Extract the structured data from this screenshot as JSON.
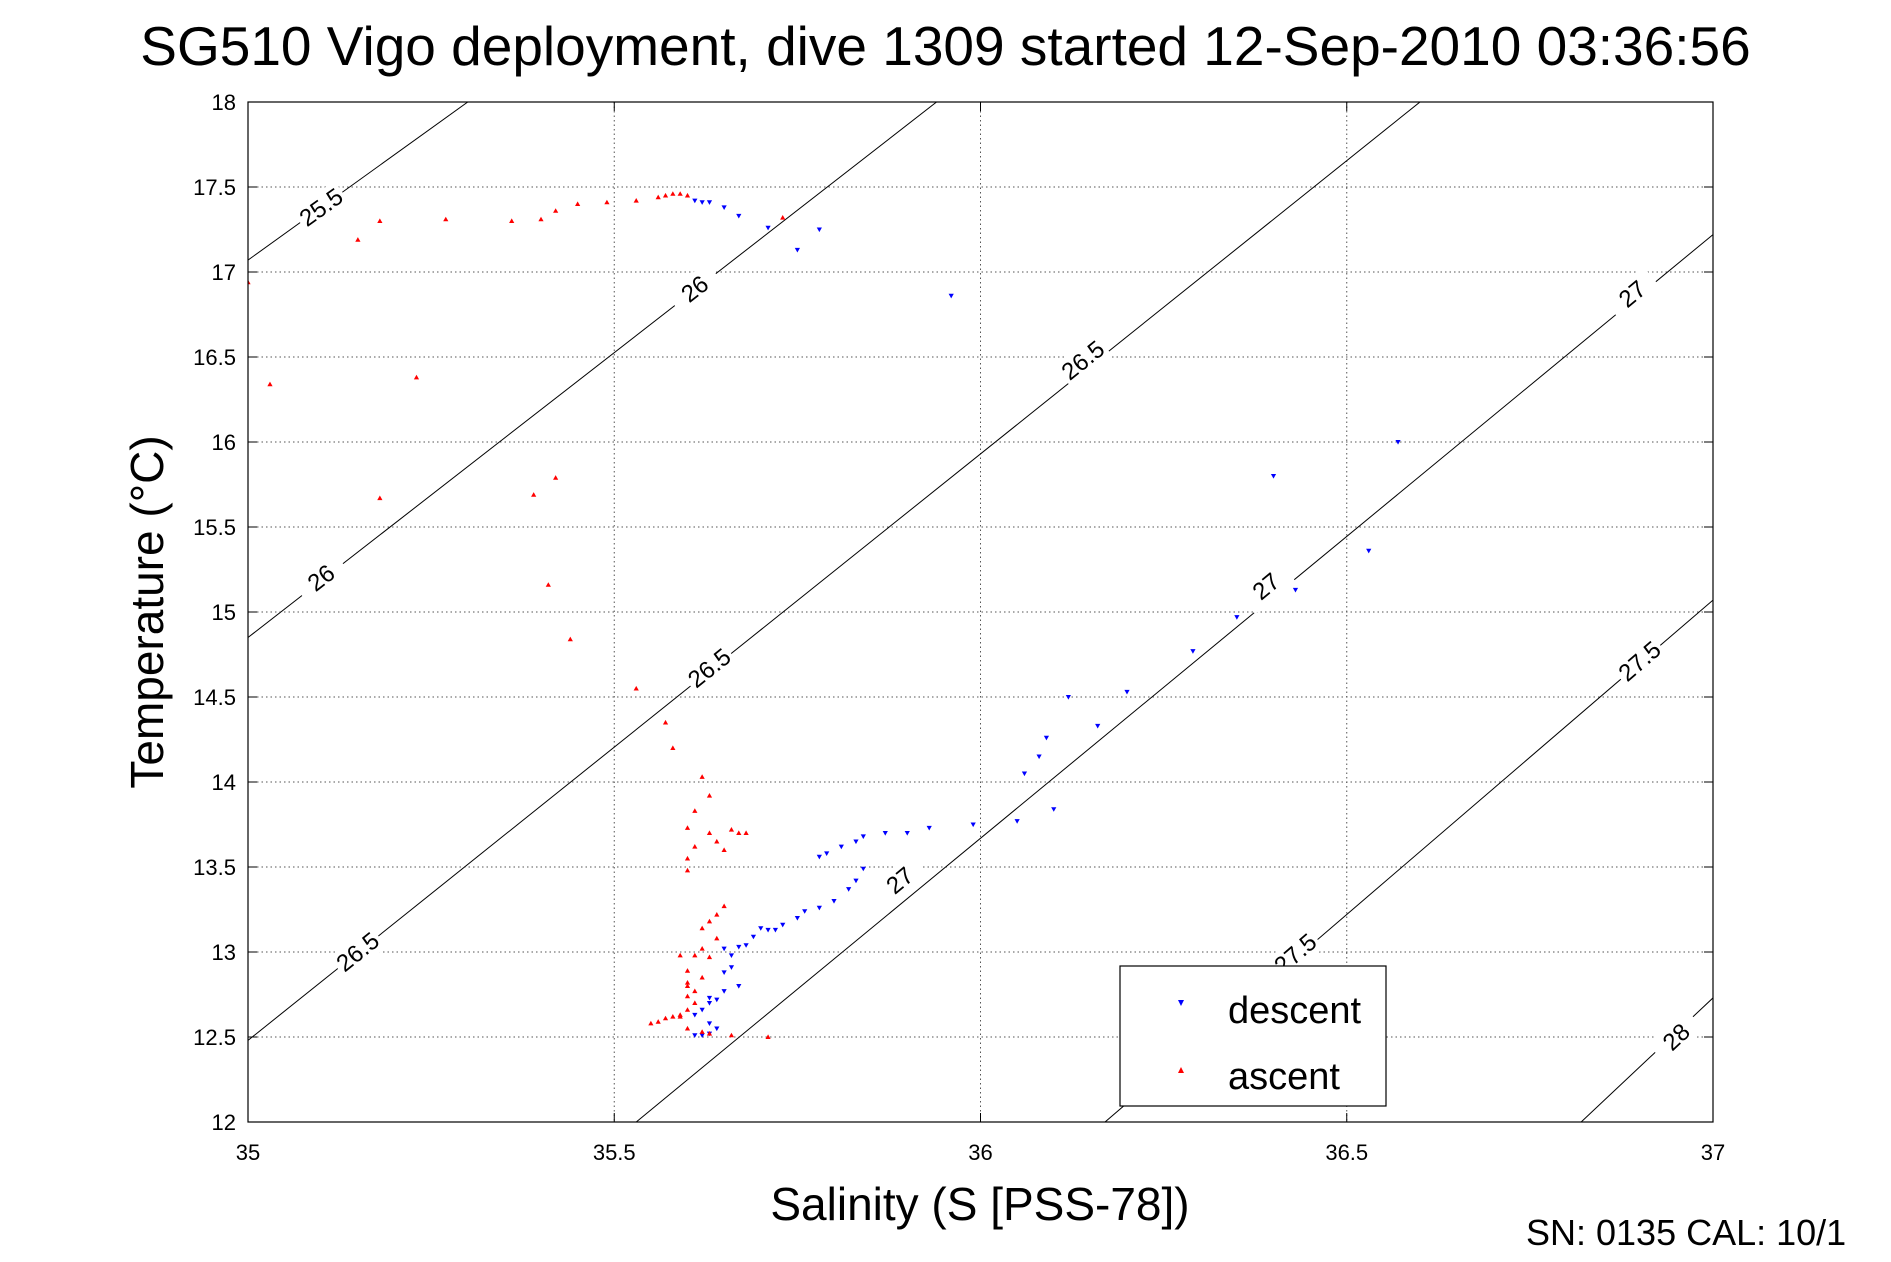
{
  "title": "SG510 Vigo deployment, dive 1309 started 12-Sep-2010 03:36:56",
  "footer_note": "SN: 0135  CAL: 10/1",
  "colors": {
    "descent": "#0000ff",
    "ascent": "#ff0000",
    "axes": "#000000",
    "grid": "#555555"
  },
  "chart_data": {
    "type": "scatter",
    "title": "SG510 Vigo deployment, dive 1309 started 12-Sep-2010 03:36:56",
    "xlabel": "Salinity (S [PSS-78])",
    "ylabel": "Temperature (°C)",
    "xlim": [
      35,
      37
    ],
    "ylim": [
      12,
      18
    ],
    "xticks": [
      "35",
      "35.5",
      "36",
      "36.5",
      "37"
    ],
    "yticks": [
      "12",
      "12.5",
      "13",
      "13.5",
      "14",
      "14.5",
      "15",
      "15.5",
      "16",
      "16.5",
      "17",
      "17.5",
      "18"
    ],
    "grid": true,
    "legend": {
      "placement": "bottom-right",
      "entries": [
        "descent",
        "ascent"
      ]
    },
    "density_contours": [
      {
        "label": "25.5",
        "points": [
          [
            35.0,
            17.07
          ],
          [
            35.3,
            18.0
          ]
        ],
        "labels": [
          {
            "text": "25.5",
            "x": 35.1,
            "y": 17.38
          }
        ]
      },
      {
        "label": "26",
        "points": [
          [
            35.0,
            14.85
          ],
          [
            35.94,
            18.0
          ]
        ],
        "labels": [
          {
            "text": "26",
            "x": 35.1,
            "y": 15.2
          },
          {
            "text": "26",
            "x": 35.61,
            "y": 16.9
          }
        ]
      },
      {
        "label": "26.5",
        "points": [
          [
            35.0,
            12.48
          ],
          [
            36.6,
            18.0
          ]
        ],
        "labels": [
          {
            "text": "26.5",
            "x": 35.15,
            "y": 13.0
          },
          {
            "text": "26.5",
            "x": 35.63,
            "y": 14.67
          },
          {
            "text": "26.5",
            "x": 36.14,
            "y": 16.48
          }
        ]
      },
      {
        "label": "27",
        "points": [
          [
            35.53,
            12.0
          ],
          [
            37.0,
            17.22
          ]
        ],
        "labels": [
          {
            "text": "27",
            "x": 35.89,
            "y": 13.42
          },
          {
            "text": "27",
            "x": 36.39,
            "y": 15.15
          },
          {
            "text": "27",
            "x": 36.89,
            "y": 16.87
          }
        ]
      },
      {
        "label": "27.5",
        "points": [
          [
            36.17,
            12.0
          ],
          [
            37.0,
            15.07
          ]
        ],
        "labels": [
          {
            "text": "27.5",
            "x": 36.43,
            "y": 12.99
          },
          {
            "text": "27.5",
            "x": 36.9,
            "y": 14.71
          }
        ]
      },
      {
        "label": "28",
        "points": [
          [
            36.82,
            12.0
          ],
          [
            37.0,
            12.73
          ]
        ],
        "labels": [
          {
            "text": "28",
            "x": 36.95,
            "y": 12.5
          }
        ]
      }
    ],
    "series": [
      {
        "name": "descent",
        "marker": "triangle-down",
        "points": [
          [
            35.61,
            17.42
          ],
          [
            35.62,
            17.41
          ],
          [
            35.63,
            17.41
          ],
          [
            35.65,
            17.38
          ],
          [
            35.67,
            17.33
          ],
          [
            35.71,
            17.26
          ],
          [
            35.75,
            17.13
          ],
          [
            35.78,
            17.25
          ],
          [
            35.96,
            16.86
          ],
          [
            36.57,
            16.0
          ],
          [
            36.4,
            15.8
          ],
          [
            36.53,
            15.36
          ],
          [
            36.43,
            15.13
          ],
          [
            36.35,
            14.97
          ],
          [
            36.29,
            14.77
          ],
          [
            36.2,
            14.53
          ],
          [
            36.12,
            14.5
          ],
          [
            36.16,
            14.33
          ],
          [
            36.09,
            14.26
          ],
          [
            36.08,
            14.15
          ],
          [
            36.06,
            14.05
          ],
          [
            36.1,
            13.84
          ],
          [
            36.05,
            13.77
          ],
          [
            35.99,
            13.75
          ],
          [
            35.93,
            13.73
          ],
          [
            35.9,
            13.7
          ],
          [
            35.87,
            13.7
          ],
          [
            35.84,
            13.68
          ],
          [
            35.83,
            13.65
          ],
          [
            35.81,
            13.62
          ],
          [
            35.79,
            13.58
          ],
          [
            35.78,
            13.56
          ],
          [
            35.84,
            13.49
          ],
          [
            35.83,
            13.42
          ],
          [
            35.82,
            13.37
          ],
          [
            35.8,
            13.3
          ],
          [
            35.78,
            13.26
          ],
          [
            35.76,
            13.24
          ],
          [
            35.75,
            13.2
          ],
          [
            35.73,
            13.16
          ],
          [
            35.72,
            13.13
          ],
          [
            35.71,
            13.13
          ],
          [
            35.7,
            13.14
          ],
          [
            35.69,
            13.09
          ],
          [
            35.68,
            13.04
          ],
          [
            35.67,
            13.03
          ],
          [
            35.65,
            13.02
          ],
          [
            35.66,
            12.98
          ],
          [
            35.66,
            12.91
          ],
          [
            35.65,
            12.88
          ],
          [
            35.67,
            12.8
          ],
          [
            35.65,
            12.77
          ],
          [
            35.63,
            12.73
          ],
          [
            35.64,
            12.72
          ],
          [
            35.63,
            12.7
          ],
          [
            35.62,
            12.66
          ],
          [
            35.61,
            12.63
          ],
          [
            35.63,
            12.58
          ],
          [
            35.63,
            12.52
          ],
          [
            35.62,
            12.51
          ],
          [
            35.61,
            12.51
          ],
          [
            35.64,
            12.55
          ]
        ]
      },
      {
        "name": "ascent",
        "marker": "triangle-up",
        "points": [
          [
            35.0,
            16.94
          ],
          [
            35.03,
            16.34
          ],
          [
            35.15,
            17.19
          ],
          [
            35.18,
            17.3
          ],
          [
            35.27,
            17.31
          ],
          [
            35.36,
            17.3
          ],
          [
            35.4,
            17.31
          ],
          [
            35.42,
            17.36
          ],
          [
            35.45,
            17.4
          ],
          [
            35.49,
            17.41
          ],
          [
            35.53,
            17.42
          ],
          [
            35.56,
            17.44
          ],
          [
            35.57,
            17.45
          ],
          [
            35.58,
            17.46
          ],
          [
            35.59,
            17.46
          ],
          [
            35.6,
            17.45
          ],
          [
            35.73,
            17.32
          ],
          [
            35.18,
            15.67
          ],
          [
            35.23,
            16.38
          ],
          [
            35.39,
            15.69
          ],
          [
            35.42,
            15.79
          ],
          [
            35.41,
            15.16
          ],
          [
            35.44,
            14.84
          ],
          [
            35.53,
            14.55
          ],
          [
            35.57,
            14.35
          ],
          [
            35.58,
            14.2
          ],
          [
            35.62,
            14.03
          ],
          [
            35.63,
            13.92
          ],
          [
            35.61,
            13.83
          ],
          [
            35.6,
            13.73
          ],
          [
            35.61,
            13.62
          ],
          [
            35.6,
            13.55
          ],
          [
            35.6,
            13.48
          ],
          [
            35.63,
            13.7
          ],
          [
            35.64,
            13.65
          ],
          [
            35.65,
            13.6
          ],
          [
            35.66,
            13.72
          ],
          [
            35.67,
            13.7
          ],
          [
            35.68,
            13.7
          ],
          [
            35.65,
            13.27
          ],
          [
            35.64,
            13.22
          ],
          [
            35.63,
            13.18
          ],
          [
            35.62,
            13.14
          ],
          [
            35.64,
            13.08
          ],
          [
            35.62,
            13.02
          ],
          [
            35.61,
            12.98
          ],
          [
            35.59,
            12.98
          ],
          [
            35.6,
            12.89
          ],
          [
            35.6,
            12.82
          ],
          [
            35.6,
            12.74
          ],
          [
            35.61,
            12.7
          ],
          [
            35.6,
            12.66
          ],
          [
            35.59,
            12.63
          ],
          [
            35.58,
            12.62
          ],
          [
            35.57,
            12.61
          ],
          [
            35.56,
            12.59
          ],
          [
            35.55,
            12.58
          ],
          [
            35.6,
            12.55
          ],
          [
            35.62,
            12.53
          ],
          [
            35.63,
            12.52
          ],
          [
            35.66,
            12.51
          ],
          [
            35.71,
            12.5
          ],
          [
            35.59,
            12.62
          ],
          [
            35.61,
            12.77
          ],
          [
            35.6,
            12.8
          ],
          [
            35.62,
            12.85
          ],
          [
            35.63,
            12.97
          ]
        ]
      }
    ]
  }
}
